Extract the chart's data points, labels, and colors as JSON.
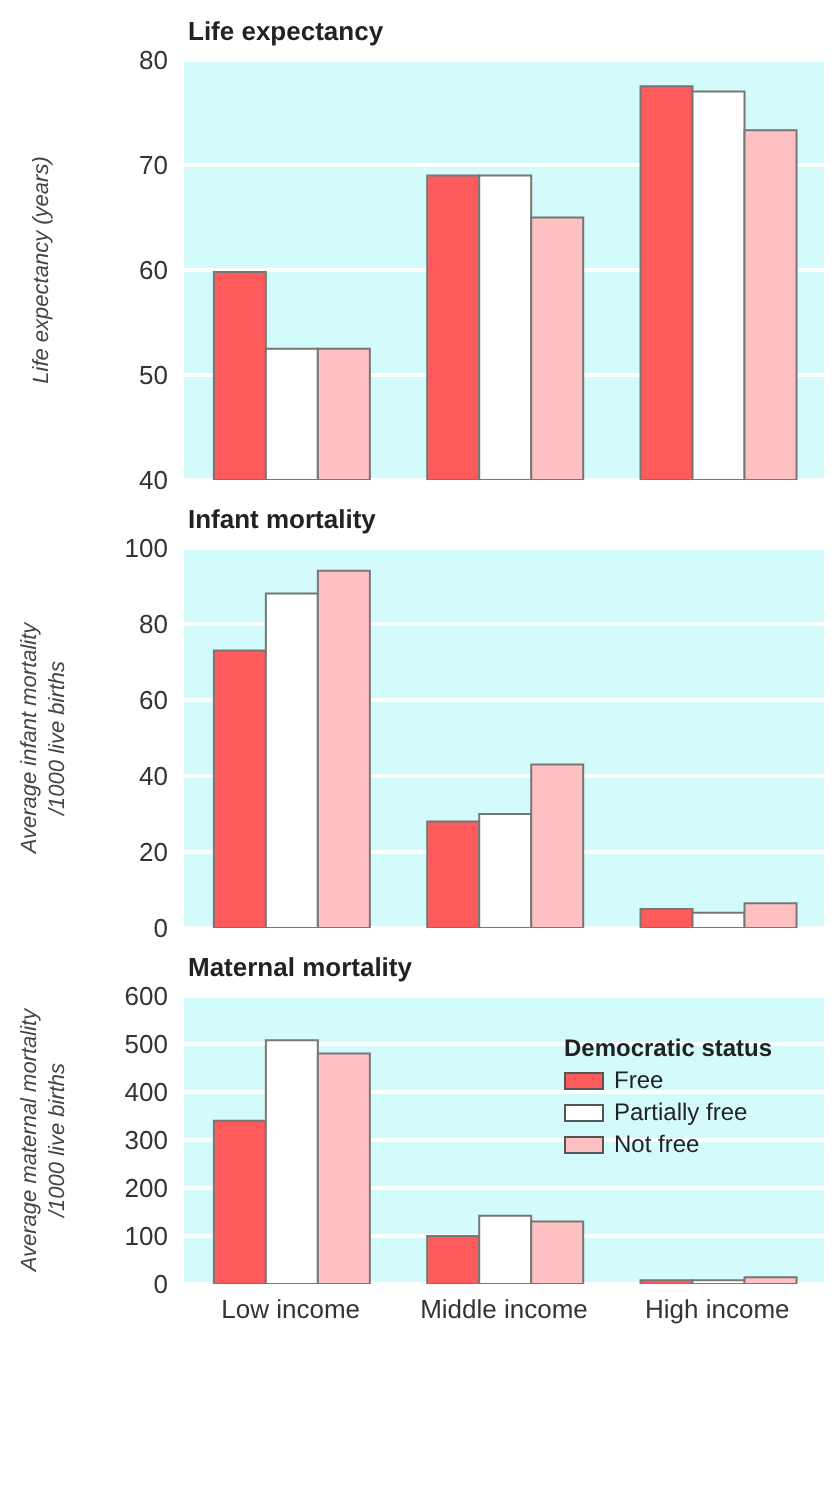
{
  "chart_data": [
    {
      "type": "bar",
      "title": "Life expectancy",
      "ylabel": "Life expectancy (years)",
      "categories": [
        null,
        null,
        null
      ],
      "series": [
        {
          "color": "#ff5a5c",
          "values": [
            59.8,
            69,
            77.5
          ]
        },
        {
          "color": "#ffffff",
          "values": [
            52.5,
            69,
            77
          ]
        },
        {
          "color": "#ffc0c2",
          "values": [
            52.5,
            65,
            73.3
          ]
        }
      ],
      "ylim": [
        40,
        80
      ],
      "yticks": [
        40,
        50,
        60,
        70,
        80
      ],
      "grid": "y",
      "legend": false,
      "tick_labels": "y"
    },
    {
      "type": "bar",
      "title": "Infant mortality",
      "ylabel": "Average infant mortality\n/1000 live births",
      "categories": [
        null,
        null,
        null
      ],
      "series": [
        {
          "color": "#ff5a5c",
          "values": [
            73,
            28,
            5
          ]
        },
        {
          "color": "#ffffff",
          "values": [
            88,
            30,
            4
          ]
        },
        {
          "color": "#ffc0c2",
          "values": [
            94,
            43,
            6.5
          ]
        }
      ],
      "ylim": [
        0,
        100
      ],
      "yticks": [
        0,
        20,
        40,
        60,
        80,
        100
      ],
      "grid": "y",
      "legend": false,
      "tick_labels": "y"
    },
    {
      "type": "bar",
      "title": "Maternal mortality",
      "ylabel": "Average maternal mortality\n/1000 live births",
      "legend_title": "Democratic status",
      "categories": [
        "Low income",
        "Middle income",
        "High income"
      ],
      "series": [
        {
          "name": "Free",
          "color": "#ff5a5c",
          "values": [
            340,
            100,
            8
          ]
        },
        {
          "name": "Partially free",
          "color": "#ffffff",
          "values": [
            508,
            142,
            8
          ]
        },
        {
          "name": "Not free",
          "color": "#ffc0c2",
          "values": [
            480,
            130,
            14
          ]
        }
      ],
      "ylim": [
        0,
        600
      ],
      "yticks": [
        0,
        100,
        200,
        300,
        400,
        500,
        600
      ],
      "grid": "y",
      "legend": "top right"
    }
  ]
}
